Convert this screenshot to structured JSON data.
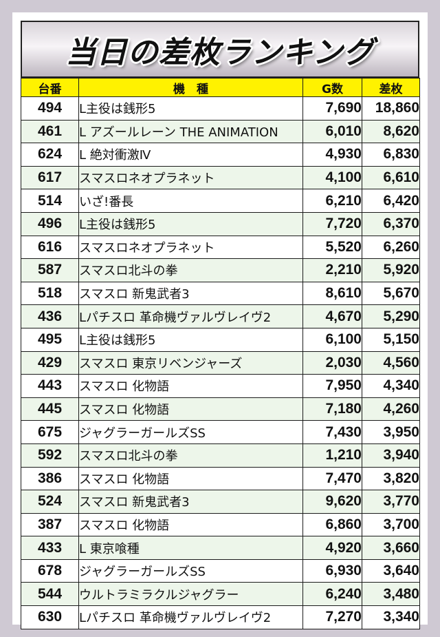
{
  "title": "当日の差枚ランキング",
  "headers": {
    "machine_no": "台番",
    "model": "機　種",
    "games": "G数",
    "diff": "差枚"
  },
  "rows": [
    {
      "no": "494",
      "model": "L主役は銭形5",
      "games": "7,690",
      "diff": "18,860"
    },
    {
      "no": "461",
      "model": "L アズールレーン THE ANIMATION",
      "games": "6,010",
      "diff": "8,620"
    },
    {
      "no": "624",
      "model": "L 絶対衝激Ⅳ",
      "games": "4,930",
      "diff": "6,830"
    },
    {
      "no": "617",
      "model": "スマスロネオプラネット",
      "games": "4,100",
      "diff": "6,610"
    },
    {
      "no": "514",
      "model": "いざ!番長",
      "games": "6,210",
      "diff": "6,420"
    },
    {
      "no": "496",
      "model": "L主役は銭形5",
      "games": "7,720",
      "diff": "6,370"
    },
    {
      "no": "616",
      "model": "スマスロネオプラネット",
      "games": "5,520",
      "diff": "6,260"
    },
    {
      "no": "587",
      "model": "スマスロ北斗の拳",
      "games": "2,210",
      "diff": "5,920"
    },
    {
      "no": "518",
      "model": "スマスロ 新鬼武者3",
      "games": "8,610",
      "diff": "5,670"
    },
    {
      "no": "436",
      "model": "Lパチスロ 革命機ヴァルヴレイヴ2",
      "games": "4,670",
      "diff": "5,290"
    },
    {
      "no": "495",
      "model": "L主役は銭形5",
      "games": "6,100",
      "diff": "5,150"
    },
    {
      "no": "429",
      "model": "スマスロ 東京リベンジャーズ",
      "games": "2,030",
      "diff": "4,560"
    },
    {
      "no": "443",
      "model": "スマスロ 化物語",
      "games": "7,950",
      "diff": "4,340"
    },
    {
      "no": "445",
      "model": "スマスロ 化物語",
      "games": "7,180",
      "diff": "4,260"
    },
    {
      "no": "675",
      "model": "ジャグラーガールズSS",
      "games": "7,430",
      "diff": "3,950"
    },
    {
      "no": "592",
      "model": "スマスロ北斗の拳",
      "games": "1,210",
      "diff": "3,940"
    },
    {
      "no": "386",
      "model": "スマスロ 化物語",
      "games": "7,470",
      "diff": "3,820"
    },
    {
      "no": "524",
      "model": "スマスロ 新鬼武者3",
      "games": "9,620",
      "diff": "3,770"
    },
    {
      "no": "387",
      "model": "スマスロ 化物語",
      "games": "6,860",
      "diff": "3,700"
    },
    {
      "no": "433",
      "model": "L 東京喰種",
      "games": "4,920",
      "diff": "3,660"
    },
    {
      "no": "678",
      "model": "ジャグラーガールズSS",
      "games": "6,930",
      "diff": "3,640"
    },
    {
      "no": "544",
      "model": "ウルトラミラクルジャグラー",
      "games": "6,240",
      "diff": "3,480"
    },
    {
      "no": "630",
      "model": "Lパチスロ 革命機ヴァルヴレイヴ2",
      "games": "7,270",
      "diff": "3,340"
    }
  ],
  "colors": {
    "header_bg": "#fff200",
    "row_alt_bg": "#edf6ea",
    "frame_bg": "#cfc9d3"
  }
}
